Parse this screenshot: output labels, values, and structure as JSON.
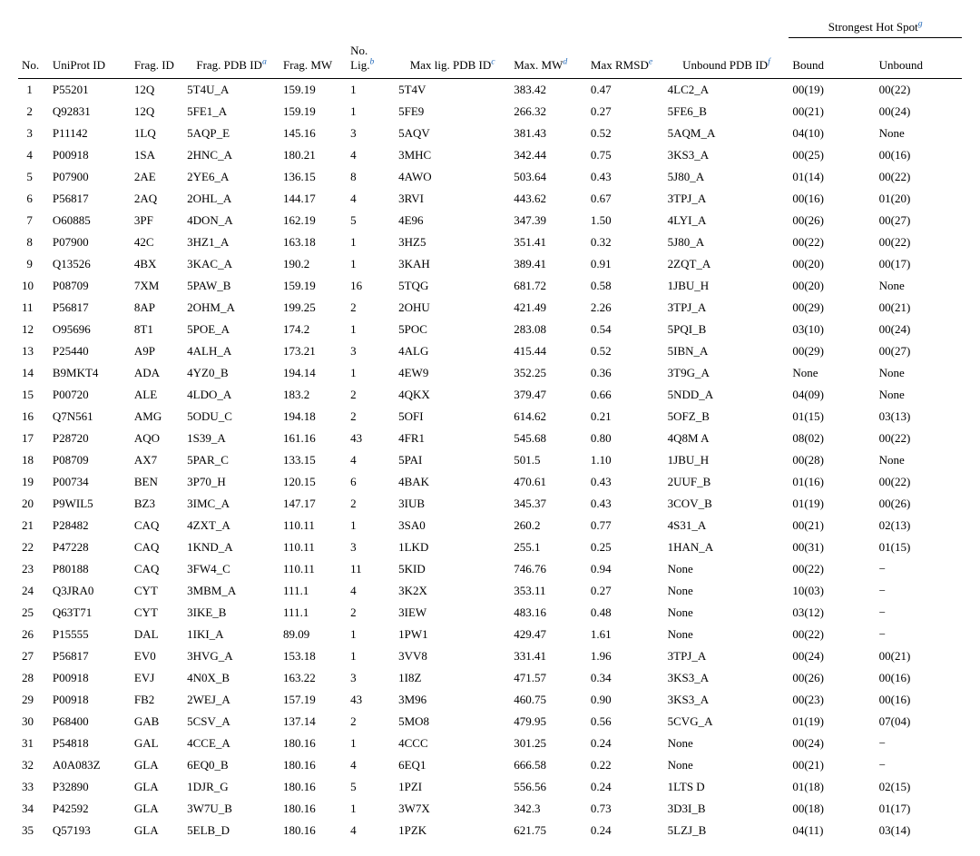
{
  "headers": {
    "no": "No.",
    "uniprot": "UniProt ID",
    "fragid": "Frag. ID",
    "fragpdb": "Frag. PDB ID",
    "fragpdb_sup": "a",
    "fragmw": "Frag. MW",
    "nolig": "No. Lig.",
    "nolig_sup": "b",
    "maxligpdb": "Max lig. PDB ID",
    "maxligpdb_sup": "c",
    "maxmw": "Max. MW",
    "maxmw_sup": "d",
    "maxrmsd": "Max RMSD",
    "maxrmsd_sup": "e",
    "unboundpdb": "Unbound PDB ID",
    "unboundpdb_sup": "f",
    "hotspot_group": "Strongest Hot Spot",
    "hotspot_group_sup": "g",
    "bound": "Bound",
    "unbound_col": "Unbound"
  },
  "rows": [
    {
      "no": "1",
      "uniprot": "P55201",
      "fragid": "12Q",
      "fragpdb": "5T4U_A",
      "fragmw": "159.19",
      "nolig": "1",
      "maxligpdb": "5T4V",
      "maxmw": "383.42",
      "maxrmsd": "0.47",
      "unboundpdb": "4LC2_A",
      "bound": "00(19)",
      "unb": "00(22)"
    },
    {
      "no": "2",
      "uniprot": "Q92831",
      "fragid": "12Q",
      "fragpdb": "5FE1_A",
      "fragmw": "159.19",
      "nolig": "1",
      "maxligpdb": "5FE9",
      "maxmw": "266.32",
      "maxrmsd": "0.27",
      "unboundpdb": "5FE6_B",
      "bound": "00(21)",
      "unb": "00(24)"
    },
    {
      "no": "3",
      "uniprot": "P11142",
      "fragid": "1LQ",
      "fragpdb": "5AQP_E",
      "fragmw": "145.16",
      "nolig": "3",
      "maxligpdb": "5AQV",
      "maxmw": "381.43",
      "maxrmsd": "0.52",
      "unboundpdb": "5AQM_A",
      "bound": "04(10)",
      "unb": "None"
    },
    {
      "no": "4",
      "uniprot": "P00918",
      "fragid": "1SA",
      "fragpdb": "2HNC_A",
      "fragmw": "180.21",
      "nolig": "4",
      "maxligpdb": "3MHC",
      "maxmw": "342.44",
      "maxrmsd": "0.75",
      "unboundpdb": "3KS3_A",
      "bound": "00(25)",
      "unb": "00(16)"
    },
    {
      "no": "5",
      "uniprot": "P07900",
      "fragid": "2AE",
      "fragpdb": "2YE6_A",
      "fragmw": "136.15",
      "nolig": "8",
      "maxligpdb": "4AWO",
      "maxmw": "503.64",
      "maxrmsd": "0.43",
      "unboundpdb": "5J80_A",
      "bound": "01(14)",
      "unb": "00(22)"
    },
    {
      "no": "6",
      "uniprot": "P56817",
      "fragid": "2AQ",
      "fragpdb": "2OHL_A",
      "fragmw": "144.17",
      "nolig": "4",
      "maxligpdb": "3RVI",
      "maxmw": "443.62",
      "maxrmsd": "0.67",
      "unboundpdb": "3TPJ_A",
      "bound": "00(16)",
      "unb": "01(20)"
    },
    {
      "no": "7",
      "uniprot": "O60885",
      "fragid": "3PF",
      "fragpdb": "4DON_A",
      "fragmw": "162.19",
      "nolig": "5",
      "maxligpdb": "4E96",
      "maxmw": "347.39",
      "maxrmsd": "1.50",
      "unboundpdb": "4LYI_A",
      "bound": "00(26)",
      "unb": "00(27)"
    },
    {
      "no": "8",
      "uniprot": "P07900",
      "fragid": "42C",
      "fragpdb": "3HZ1_A",
      "fragmw": "163.18",
      "nolig": "1",
      "maxligpdb": "3HZ5",
      "maxmw": "351.41",
      "maxrmsd": "0.32",
      "unboundpdb": "5J80_A",
      "bound": "00(22)",
      "unb": "00(22)"
    },
    {
      "no": "9",
      "uniprot": "Q13526",
      "fragid": "4BX",
      "fragpdb": "3KAC_A",
      "fragmw": "190.2",
      "nolig": "1",
      "maxligpdb": "3KAH",
      "maxmw": "389.41",
      "maxrmsd": "0.91",
      "unboundpdb": "2ZQT_A",
      "bound": "00(20)",
      "unb": "00(17)"
    },
    {
      "no": "10",
      "uniprot": "P08709",
      "fragid": "7XM",
      "fragpdb": "5PAW_B",
      "fragmw": "159.19",
      "nolig": "16",
      "maxligpdb": "5TQG",
      "maxmw": "681.72",
      "maxrmsd": "0.58",
      "unboundpdb": "1JBU_H",
      "bound": "00(20)",
      "unb": "None"
    },
    {
      "no": "11",
      "uniprot": "P56817",
      "fragid": "8AP",
      "fragpdb": "2OHM_A",
      "fragmw": "199.25",
      "nolig": "2",
      "maxligpdb": "2OHU",
      "maxmw": "421.49",
      "maxrmsd": "2.26",
      "unboundpdb": "3TPJ_A",
      "bound": "00(29)",
      "unb": "00(21)"
    },
    {
      "no": "12",
      "uniprot": "O95696",
      "fragid": "8T1",
      "fragpdb": "5POE_A",
      "fragmw": "174.2",
      "nolig": "1",
      "maxligpdb": "5POC",
      "maxmw": "283.08",
      "maxrmsd": "0.54",
      "unboundpdb": "5PQI_B",
      "bound": "03(10)",
      "unb": "00(24)"
    },
    {
      "no": "13",
      "uniprot": "P25440",
      "fragid": "A9P",
      "fragpdb": "4ALH_A",
      "fragmw": "173.21",
      "nolig": "3",
      "maxligpdb": "4ALG",
      "maxmw": "415.44",
      "maxrmsd": "0.52",
      "unboundpdb": "5IBN_A",
      "bound": "00(29)",
      "unb": "00(27)"
    },
    {
      "no": "14",
      "uniprot": "B9MKT4",
      "fragid": "ADA",
      "fragpdb": "4YZ0_B",
      "fragmw": "194.14",
      "nolig": "1",
      "maxligpdb": "4EW9",
      "maxmw": "352.25",
      "maxrmsd": "0.36",
      "unboundpdb": "3T9G_A",
      "bound": "None",
      "unb": "None"
    },
    {
      "no": "15",
      "uniprot": "P00720",
      "fragid": "ALE",
      "fragpdb": "4LDO_A",
      "fragmw": "183.2",
      "nolig": "2",
      "maxligpdb": "4QKX",
      "maxmw": "379.47",
      "maxrmsd": "0.66",
      "unboundpdb": "5NDD_A",
      "bound": "04(09)",
      "unb": "None"
    },
    {
      "no": "16",
      "uniprot": "Q7N561",
      "fragid": "AMG",
      "fragpdb": "5ODU_C",
      "fragmw": "194.18",
      "nolig": "2",
      "maxligpdb": "5OFI",
      "maxmw": "614.62",
      "maxrmsd": "0.21",
      "unboundpdb": "5OFZ_B",
      "bound": "01(15)",
      "unb": "03(13)"
    },
    {
      "no": "17",
      "uniprot": "P28720",
      "fragid": "AQO",
      "fragpdb": "1S39_A",
      "fragmw": "161.16",
      "nolig": "43",
      "maxligpdb": "4FR1",
      "maxmw": "545.68",
      "maxrmsd": "0.80",
      "unboundpdb": "4Q8M A",
      "bound": "08(02)",
      "unb": "00(22)"
    },
    {
      "no": "18",
      "uniprot": "P08709",
      "fragid": "AX7",
      "fragpdb": "5PAR_C",
      "fragmw": "133.15",
      "nolig": "4",
      "maxligpdb": "5PAI",
      "maxmw": "501.5",
      "maxrmsd": "1.10",
      "unboundpdb": "1JBU_H",
      "bound": "00(28)",
      "unb": "None"
    },
    {
      "no": "19",
      "uniprot": "P00734",
      "fragid": "BEN",
      "fragpdb": "3P70_H",
      "fragmw": "120.15",
      "nolig": "6",
      "maxligpdb": "4BAK",
      "maxmw": "470.61",
      "maxrmsd": "0.43",
      "unboundpdb": "2UUF_B",
      "bound": "01(16)",
      "unb": "00(22)"
    },
    {
      "no": "20",
      "uniprot": "P9WIL5",
      "fragid": "BZ3",
      "fragpdb": "3IMC_A",
      "fragmw": "147.17",
      "nolig": "2",
      "maxligpdb": "3IUB",
      "maxmw": "345.37",
      "maxrmsd": "0.43",
      "unboundpdb": "3COV_B",
      "bound": "01(19)",
      "unb": "00(26)"
    },
    {
      "no": "21",
      "uniprot": "P28482",
      "fragid": "CAQ",
      "fragpdb": "4ZXT_A",
      "fragmw": "110.11",
      "nolig": "1",
      "maxligpdb": "3SA0",
      "maxmw": "260.2",
      "maxrmsd": "0.77",
      "unboundpdb": "4S31_A",
      "bound": "00(21)",
      "unb": "02(13)"
    },
    {
      "no": "22",
      "uniprot": "P47228",
      "fragid": "CAQ",
      "fragpdb": "1KND_A",
      "fragmw": "110.11",
      "nolig": "3",
      "maxligpdb": "1LKD",
      "maxmw": "255.1",
      "maxrmsd": "0.25",
      "unboundpdb": "1HAN_A",
      "bound": "00(31)",
      "unb": "01(15)"
    },
    {
      "no": "23",
      "uniprot": "P80188",
      "fragid": "CAQ",
      "fragpdb": "3FW4_C",
      "fragmw": "110.11",
      "nolig": "11",
      "maxligpdb": "5KID",
      "maxmw": "746.76",
      "maxrmsd": "0.94",
      "unboundpdb": "None",
      "bound": "00(22)",
      "unb": "−"
    },
    {
      "no": "24",
      "uniprot": "Q3JRA0",
      "fragid": "CYT",
      "fragpdb": "3MBM_A",
      "fragmw": "111.1",
      "nolig": "4",
      "maxligpdb": "3K2X",
      "maxmw": "353.11",
      "maxrmsd": "0.27",
      "unboundpdb": "None",
      "bound": "10(03)",
      "unb": "−"
    },
    {
      "no": "25",
      "uniprot": "Q63T71",
      "fragid": "CYT",
      "fragpdb": "3IKE_B",
      "fragmw": "111.1",
      "nolig": "2",
      "maxligpdb": "3IEW",
      "maxmw": "483.16",
      "maxrmsd": "0.48",
      "unboundpdb": "None",
      "bound": "03(12)",
      "unb": "−"
    },
    {
      "no": "26",
      "uniprot": "P15555",
      "fragid": "DAL",
      "fragpdb": "1IKI_A",
      "fragmw": "89.09",
      "nolig": "1",
      "maxligpdb": "1PW1",
      "maxmw": "429.47",
      "maxrmsd": "1.61",
      "unboundpdb": "None",
      "bound": "00(22)",
      "unb": "−"
    },
    {
      "no": "27",
      "uniprot": "P56817",
      "fragid": "EV0",
      "fragpdb": "3HVG_A",
      "fragmw": "153.18",
      "nolig": "1",
      "maxligpdb": "3VV8",
      "maxmw": "331.41",
      "maxrmsd": "1.96",
      "unboundpdb": "3TPJ_A",
      "bound": "00(24)",
      "unb": "00(21)"
    },
    {
      "no": "28",
      "uniprot": "P00918",
      "fragid": "EVJ",
      "fragpdb": "4N0X_B",
      "fragmw": "163.22",
      "nolig": "3",
      "maxligpdb": "1I8Z",
      "maxmw": "471.57",
      "maxrmsd": "0.34",
      "unboundpdb": "3KS3_A",
      "bound": "00(26)",
      "unb": "00(16)"
    },
    {
      "no": "29",
      "uniprot": "P00918",
      "fragid": "FB2",
      "fragpdb": "2WEJ_A",
      "fragmw": "157.19",
      "nolig": "43",
      "maxligpdb": "3M96",
      "maxmw": "460.75",
      "maxrmsd": "0.90",
      "unboundpdb": "3KS3_A",
      "bound": "00(23)",
      "unb": "00(16)"
    },
    {
      "no": "30",
      "uniprot": "P68400",
      "fragid": "GAB",
      "fragpdb": "5CSV_A",
      "fragmw": "137.14",
      "nolig": "2",
      "maxligpdb": "5MO8",
      "maxmw": "479.95",
      "maxrmsd": "0.56",
      "unboundpdb": "5CVG_A",
      "bound": "01(19)",
      "unb": "07(04)"
    },
    {
      "no": "31",
      "uniprot": "P54818",
      "fragid": "GAL",
      "fragpdb": "4CCE_A",
      "fragmw": "180.16",
      "nolig": "1",
      "maxligpdb": "4CCC",
      "maxmw": "301.25",
      "maxrmsd": "0.24",
      "unboundpdb": "None",
      "bound": "00(24)",
      "unb": "−"
    },
    {
      "no": "32",
      "uniprot": "A0A083Z",
      "fragid": "GLA",
      "fragpdb": "6EQ0_B",
      "fragmw": "180.16",
      "nolig": "4",
      "maxligpdb": "6EQ1",
      "maxmw": "666.58",
      "maxrmsd": "0.22",
      "unboundpdb": "None",
      "bound": "00(21)",
      "unb": "−"
    },
    {
      "no": "33",
      "uniprot": "P32890",
      "fragid": "GLA",
      "fragpdb": "1DJR_G",
      "fragmw": "180.16",
      "nolig": "5",
      "maxligpdb": "1PZI",
      "maxmw": "556.56",
      "maxrmsd": "0.24",
      "unboundpdb": "1LTS D",
      "bound": "01(18)",
      "unb": "02(15)"
    },
    {
      "no": "34",
      "uniprot": "P42592",
      "fragid": "GLA",
      "fragpdb": "3W7U_B",
      "fragmw": "180.16",
      "nolig": "1",
      "maxligpdb": "3W7X",
      "maxmw": "342.3",
      "maxrmsd": "0.73",
      "unboundpdb": "3D3I_B",
      "bound": "00(18)",
      "unb": "01(17)"
    },
    {
      "no": "35",
      "uniprot": "Q57193",
      "fragid": "GLA",
      "fragpdb": "5ELB_D",
      "fragmw": "180.16",
      "nolig": "4",
      "maxligpdb": "1PZK",
      "maxmw": "621.75",
      "maxrmsd": "0.24",
      "unboundpdb": "5LZJ_B",
      "bound": "04(11)",
      "unb": "03(14)"
    }
  ]
}
